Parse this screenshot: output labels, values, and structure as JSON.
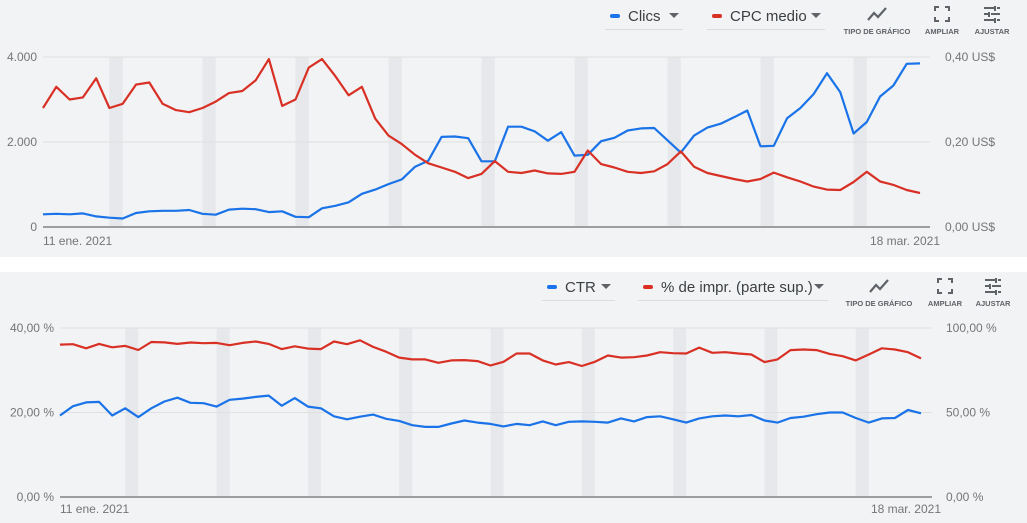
{
  "colors": {
    "blue": "#1a73e8",
    "red": "#d93025",
    "grid": "#e0e0e0",
    "weekend": "#e6e8eb",
    "axis": "#9e9e9e"
  },
  "toolbar": {
    "chart_type": "TIPO DE GRÁFICO",
    "expand": "AMPLIAR",
    "adjust": "AJUSTAR"
  },
  "chart_data": [
    {
      "type": "line",
      "legend": [
        "Clics",
        "CPC medio"
      ],
      "x_labels": {
        "start": "11 ene. 2021",
        "end": "18 mar. 2021"
      },
      "left_axis": {
        "ticks": [
          "0",
          "2.000",
          "4.000"
        ],
        "tick_values": [
          0,
          2000,
          4000
        ],
        "range": [
          0,
          4000
        ]
      },
      "right_axis": {
        "ticks": [
          "0,00 US$",
          "0,20 US$",
          "0,40 US$"
        ],
        "tick_values": [
          0,
          0.2,
          0.4
        ],
        "range": [
          0,
          0.4
        ]
      },
      "weekend_start_indices": [
        5,
        12,
        19,
        26,
        33,
        40,
        47,
        54,
        61
      ],
      "series": [
        {
          "name": "Clics",
          "axis": "left",
          "color": "blue",
          "values": [
            300,
            310,
            300,
            320,
            250,
            220,
            200,
            330,
            370,
            380,
            380,
            400,
            310,
            290,
            410,
            430,
            420,
            350,
            370,
            240,
            230,
            440,
            500,
            580,
            780,
            880,
            1010,
            1120,
            1420,
            1560,
            2120,
            2130,
            2090,
            1545,
            1545,
            2360,
            2360,
            2250,
            2030,
            2230,
            1680,
            1700,
            2020,
            2100,
            2270,
            2320,
            2330,
            2040,
            1750,
            2150,
            2340,
            2430,
            2580,
            2740,
            1900,
            1910,
            2560,
            2800,
            3130,
            3620,
            3170,
            2200,
            2470,
            3070,
            3330,
            3840,
            3850
          ]
        },
        {
          "name": "CPC medio",
          "axis": "right",
          "color": "red",
          "values": [
            0.28,
            0.33,
            0.3,
            0.305,
            0.35,
            0.28,
            0.29,
            0.335,
            0.34,
            0.29,
            0.275,
            0.27,
            0.28,
            0.295,
            0.315,
            0.32,
            0.345,
            0.395,
            0.285,
            0.3,
            0.375,
            0.395,
            0.355,
            0.31,
            0.33,
            0.255,
            0.215,
            0.195,
            0.17,
            0.15,
            0.14,
            0.13,
            0.115,
            0.125,
            0.155,
            0.13,
            0.127,
            0.133,
            0.126,
            0.125,
            0.13,
            0.18,
            0.148,
            0.14,
            0.13,
            0.127,
            0.131,
            0.148,
            0.178,
            0.142,
            0.127,
            0.12,
            0.113,
            0.107,
            0.113,
            0.128,
            0.117,
            0.107,
            0.095,
            0.088,
            0.087,
            0.106,
            0.13,
            0.107,
            0.099,
            0.087,
            0.08
          ]
        }
      ]
    },
    {
      "type": "line",
      "legend": [
        "CTR",
        "% de impr. (parte sup.)"
      ],
      "x_labels": {
        "start": "11 ene. 2021",
        "end": "18 mar. 2021"
      },
      "left_axis": {
        "ticks": [
          "0,00 %",
          "20,00 %",
          "40,00 %"
        ],
        "tick_values": [
          0,
          20,
          40
        ],
        "range": [
          0,
          40
        ]
      },
      "right_axis": {
        "ticks": [
          "0,00 %",
          "50,00 %",
          "100,00 %"
        ],
        "tick_values": [
          0,
          50,
          100
        ],
        "range": [
          0,
          100
        ]
      },
      "weekend_start_indices": [
        5,
        12,
        19,
        26,
        33,
        40,
        47,
        54,
        61
      ],
      "series": [
        {
          "name": "CTR",
          "axis": "left",
          "color": "blue",
          "values": [
            19.3,
            21.5,
            22.4,
            22.5,
            19.3,
            21,
            18.9,
            21,
            22.6,
            23.5,
            22.3,
            22.2,
            21.4,
            23,
            23.3,
            23.7,
            24,
            21.6,
            23.4,
            21.4,
            21,
            19.1,
            18.4,
            19,
            19.5,
            18.5,
            18,
            17,
            16.6,
            16.6,
            17.4,
            18.1,
            17.6,
            17.3,
            16.7,
            17.3,
            17,
            17.9,
            17,
            17.8,
            17.9,
            17.8,
            17.6,
            18.6,
            17.9,
            18.9,
            19.1,
            18.4,
            17.6,
            18.6,
            19.1,
            19.3,
            19.1,
            19.4,
            18.1,
            17.6,
            18.7,
            19,
            19.6,
            20,
            20,
            18.7,
            17.6,
            18.6,
            18.7,
            20.6,
            19.8
          ]
        },
        {
          "name": "% de impr. (parte sup.)",
          "axis": "right",
          "color": "red",
          "values": [
            90.2,
            90.4,
            88,
            90.6,
            88.6,
            89.4,
            87,
            91.7,
            91.5,
            90.6,
            91.4,
            91,
            91.2,
            89.8,
            91.2,
            92,
            90.6,
            87.5,
            89.2,
            87.8,
            87.5,
            92,
            90.4,
            92.7,
            88.8,
            86,
            82.5,
            81.4,
            81.4,
            79.4,
            80.8,
            81,
            80.4,
            77.8,
            80,
            84.9,
            84.9,
            80.8,
            78.4,
            79.8,
            77.5,
            80,
            83.7,
            82.5,
            82.7,
            83.7,
            85.7,
            85.1,
            84.9,
            88.4,
            85.3,
            85.7,
            84.9,
            84.3,
            79.8,
            81.4,
            86.9,
            87.3,
            86.9,
            84.7,
            83.3,
            80.8,
            84.3,
            88,
            87.3,
            85.7,
            82
          ]
        }
      ]
    }
  ]
}
